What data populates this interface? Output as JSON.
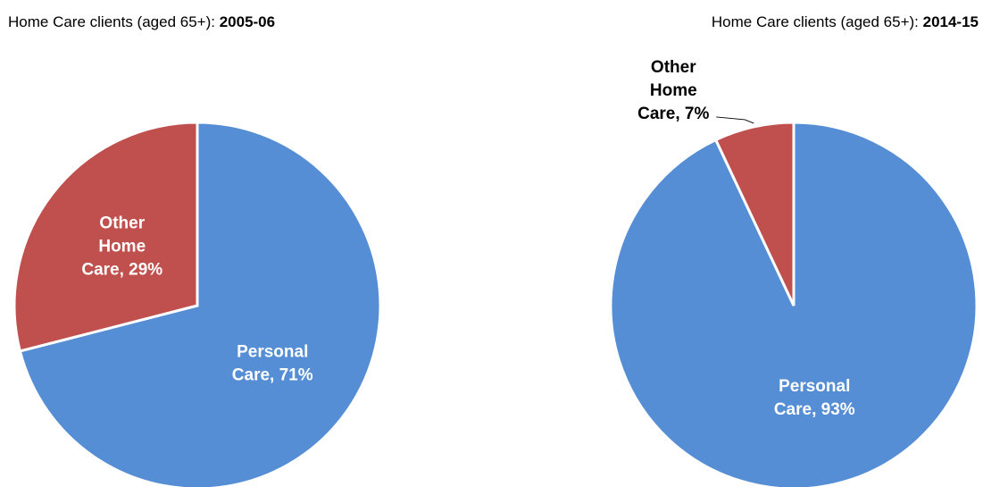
{
  "chart_data": [
    {
      "type": "pie",
      "title": "Home Care clients (aged 65+):",
      "period": "2005-06",
      "values": [
        71,
        29
      ],
      "value_labels": [
        "Personal Care, 71%",
        "Other Home Care, 29%"
      ],
      "colors": [
        "#558ed5",
        "#c0504d"
      ]
    },
    {
      "type": "pie",
      "title": "Home Care clients (aged 65+):",
      "period": "2014-15",
      "values": [
        93,
        7
      ],
      "value_labels": [
        "Personal Care, 93%",
        "Other Home Care, 7%"
      ],
      "colors": [
        "#558ed5",
        "#c0504d"
      ]
    }
  ]
}
